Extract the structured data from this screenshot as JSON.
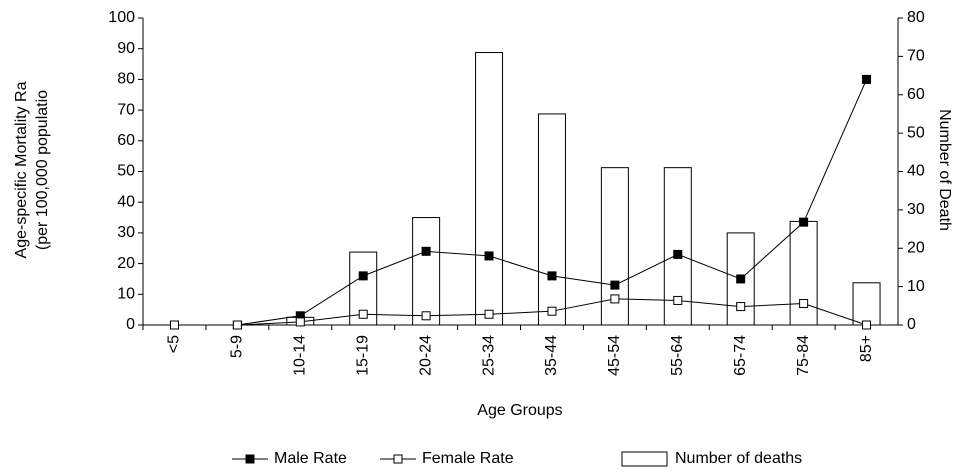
{
  "chart_data": {
    "type": "bar-line",
    "x_label": "Age Groups",
    "y_label": [
      "Age-specific Mortality Ra",
      "(per 100,000 populatio"
    ],
    "y2_label": "Number of Death",
    "categories": [
      "<5",
      "5-9",
      "10-14",
      "15-19",
      "20-24",
      "25-34",
      "35-44",
      "45-54",
      "55-64",
      "65-74",
      "75-84",
      "85+"
    ],
    "series": [
      {
        "name": "Male Rate",
        "kind": "line",
        "marker": "filled",
        "color": "#000000",
        "values": [
          0,
          0,
          3,
          16,
          24,
          22.5,
          16,
          13,
          23,
          15,
          33.5,
          80
        ]
      },
      {
        "name": "Female Rate",
        "kind": "line",
        "marker": "open",
        "color": "#000000",
        "values": [
          0,
          0,
          1,
          3.5,
          3,
          3.5,
          4.5,
          8.5,
          8,
          6,
          7,
          0
        ]
      },
      {
        "name": "Number of deaths",
        "kind": "bar",
        "axis": "y2",
        "color": "#ffffff",
        "values": [
          0,
          0,
          2,
          19,
          28,
          71,
          55,
          41,
          41,
          24,
          27,
          11
        ]
      }
    ],
    "ylim": [
      0,
      100
    ],
    "yticks": [
      0,
      10,
      20,
      30,
      40,
      50,
      60,
      70,
      80,
      90,
      100
    ],
    "y2lim": [
      0,
      80
    ],
    "y2ticks": [
      0,
      10,
      20,
      30,
      40,
      50,
      60,
      70,
      80
    ],
    "legend": "bottom"
  }
}
